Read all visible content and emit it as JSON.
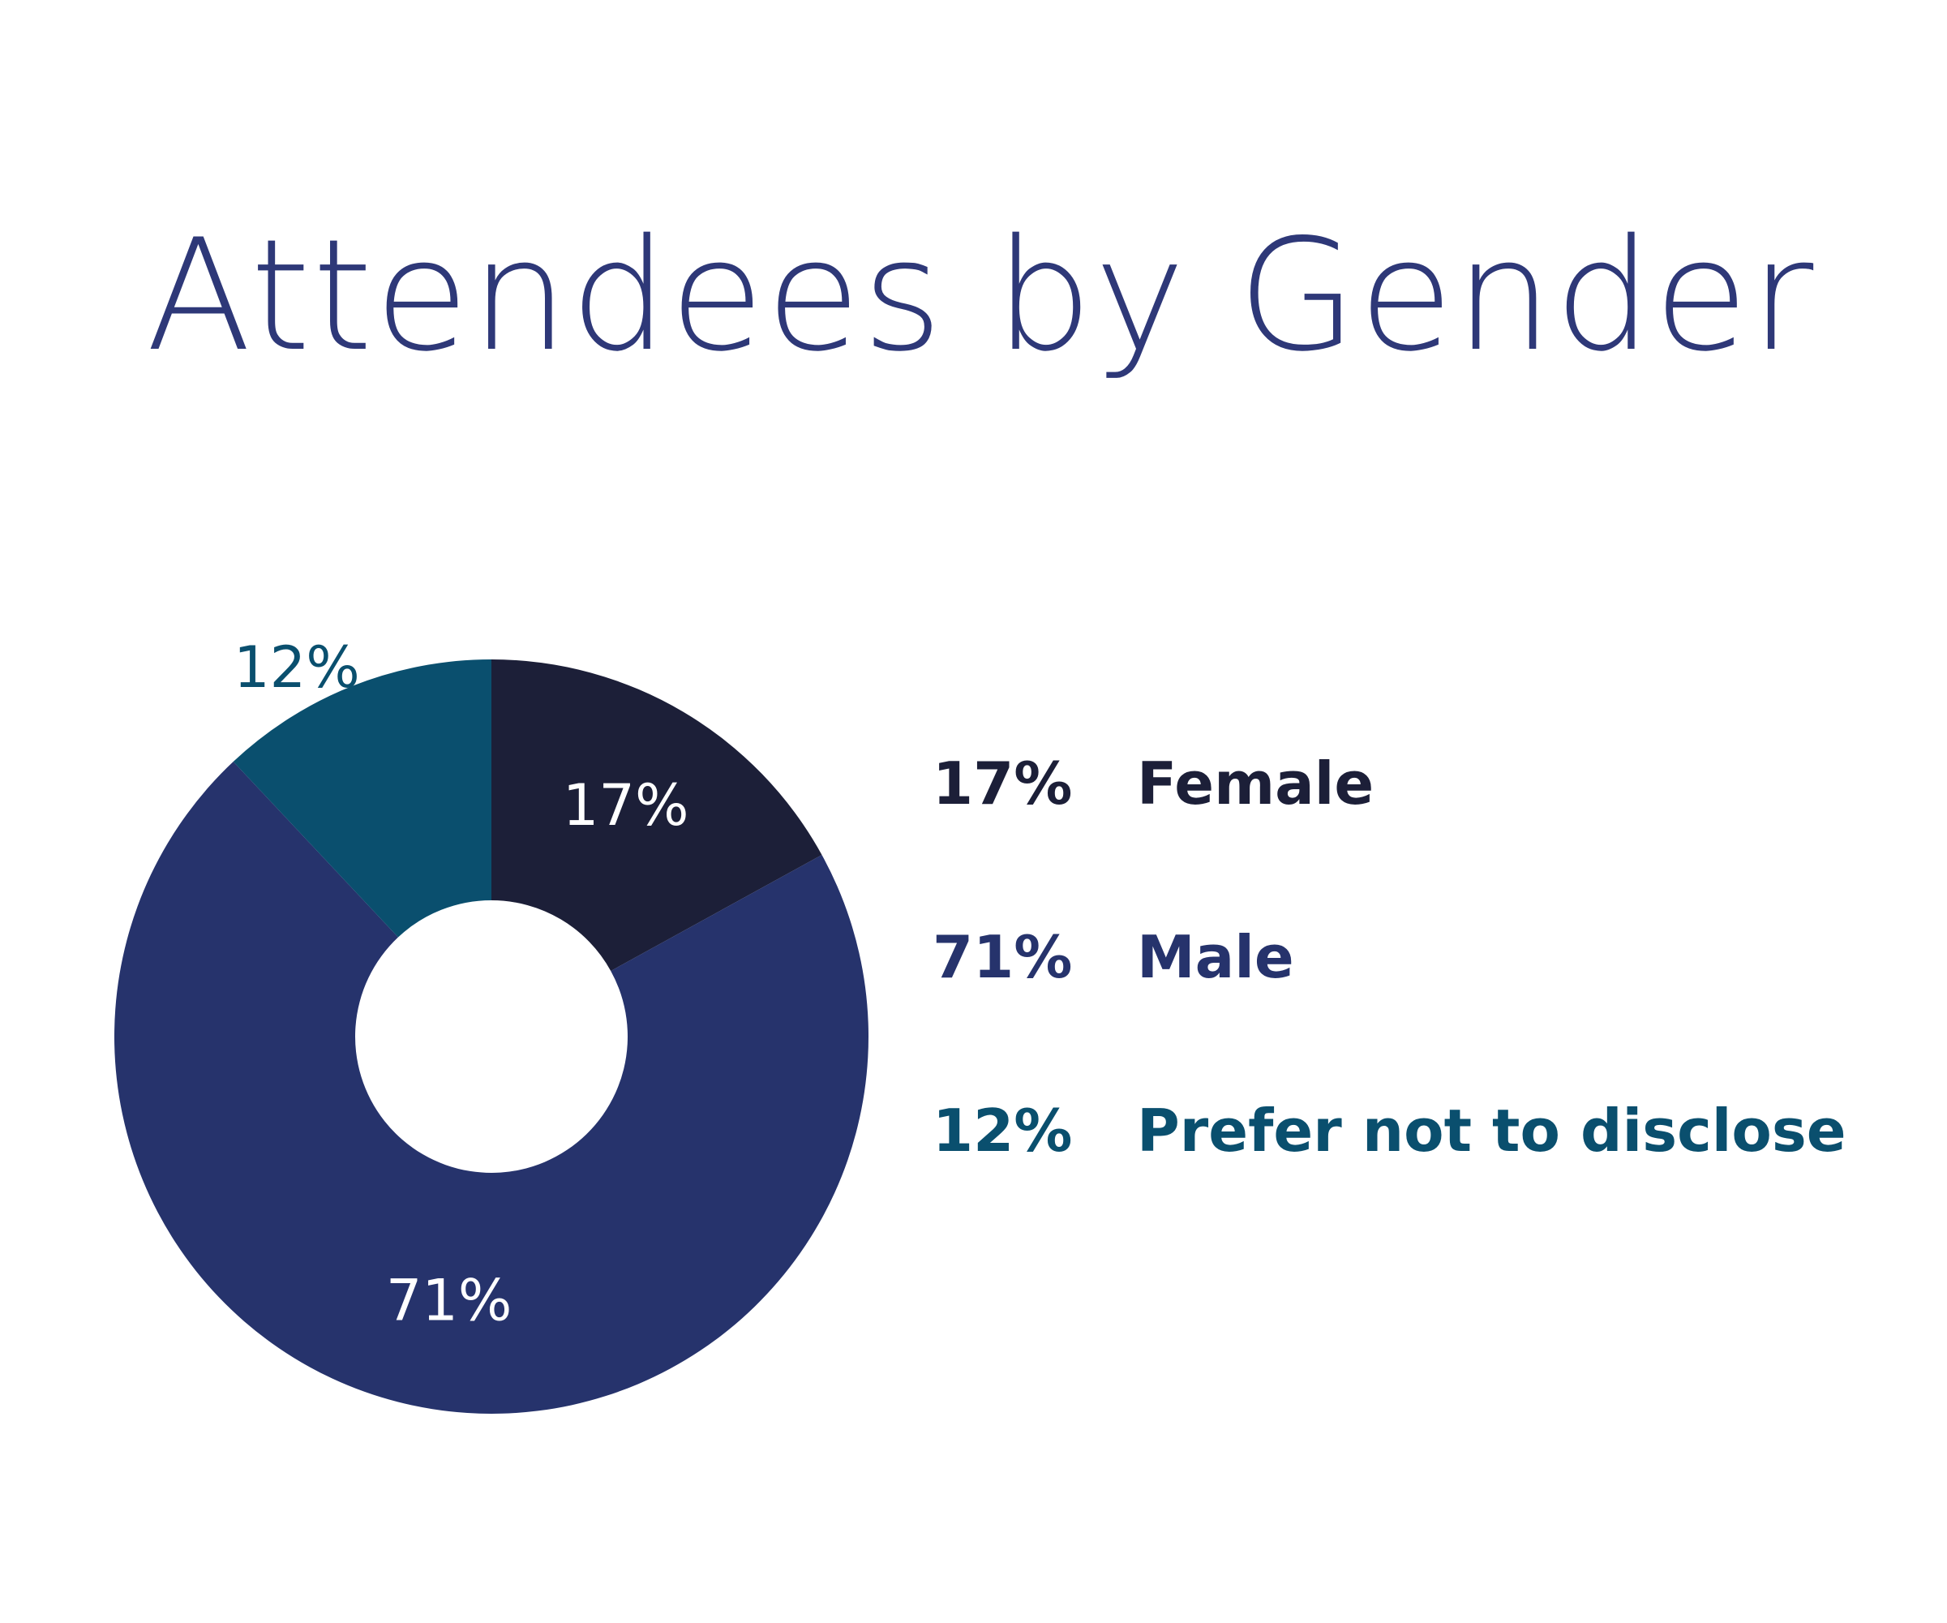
{
  "chart_data": {
    "type": "pie",
    "title": "Attendees by Gender",
    "style": "donut",
    "slices": [
      {
        "label": "Female",
        "value": 17,
        "display": "17%",
        "color": "#1c1f38",
        "label_color": "#ffffff"
      },
      {
        "label": "Male",
        "value": 71,
        "display": "71%",
        "color": "#26336c",
        "label_color": "#ffffff"
      },
      {
        "label": "Prefer not to disclose",
        "value": 12,
        "display": "12%",
        "color": "#0a4f6e",
        "label_color": "#0a4f6e"
      }
    ],
    "legend": [
      {
        "value": "17%",
        "label": "Female",
        "color": "#1c1f38"
      },
      {
        "value": "71%",
        "label": "Male",
        "color": "#26336c"
      },
      {
        "value": "12%",
        "label": "Prefer not to disclose",
        "color": "#0a4f6e"
      }
    ],
    "legend_position": "right",
    "title_color": "#2e3878",
    "start_angle_deg": 0,
    "direction": "clockwise"
  }
}
